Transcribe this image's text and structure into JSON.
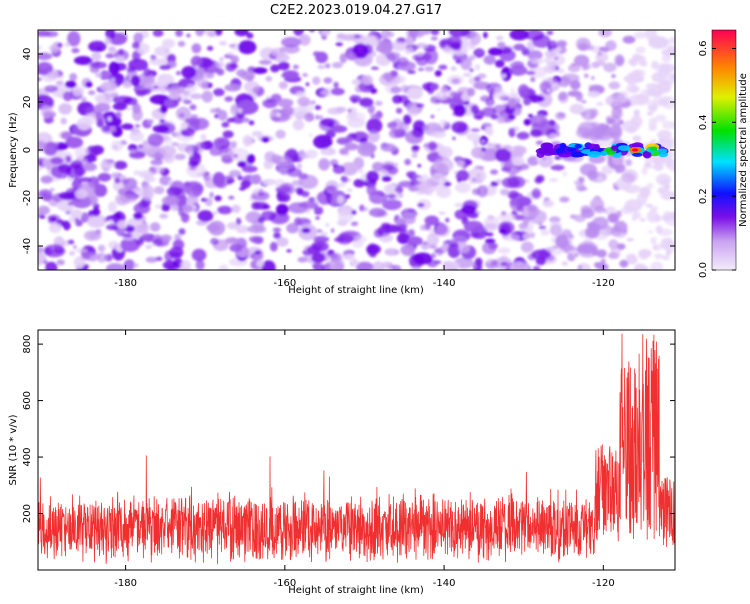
{
  "title": "C2E2.2023.019.04.27.G17",
  "colors": {
    "heat_low": "#e8d6f8",
    "heat_mid": "#6a00e8",
    "snr_line": "#f03030",
    "axis": "#000000"
  },
  "chart_data": [
    {
      "type": "heatmap",
      "title": "C2E2.2023.019.04.27.G17",
      "xlabel": "Height of straight line (km)",
      "ylabel": "Frequency (Hz)",
      "xlim": [
        -191,
        -111
      ],
      "ylim": [
        -50,
        50
      ],
      "xticks": [
        -180,
        -160,
        -140,
        -120
      ],
      "xtick_labels": [
        "-180",
        "-160",
        "-140",
        "-120"
      ],
      "yticks": [
        -40,
        -20,
        0,
        20,
        40
      ],
      "ytick_labels": [
        "-40",
        "-20",
        "0",
        "20",
        "40"
      ],
      "colorbar": {
        "label": "Normalized spectral amplitude",
        "range": [
          0,
          0.65
        ],
        "ticks": [
          0,
          0.2,
          0.4,
          0.6
        ],
        "tick_labels": [
          "0.0",
          "0.2",
          "0.4",
          "0.6"
        ]
      },
      "peak": {
        "x": -116,
        "y": 0,
        "value": 0.6
      },
      "background_level": 0.1
    },
    {
      "type": "line",
      "xlabel": "Height of straight line (km)",
      "ylabel": "SNR (10 * v/v)",
      "xlim": [
        -191,
        -111
      ],
      "ylim": [
        0,
        850
      ],
      "xticks": [
        -180,
        -160,
        -140,
        -120
      ],
      "xtick_labels": [
        "-180",
        "-160",
        "-140",
        "-120"
      ],
      "yticks": [
        200,
        400,
        600,
        800
      ],
      "ytick_labels": [
        "200",
        "400",
        "600",
        "800"
      ],
      "series": [
        {
          "baseline_mean": 150,
          "baseline_spread": 110,
          "peak_region": [
            -118,
            -113
          ],
          "peak_max": 840
        }
      ]
    }
  ]
}
